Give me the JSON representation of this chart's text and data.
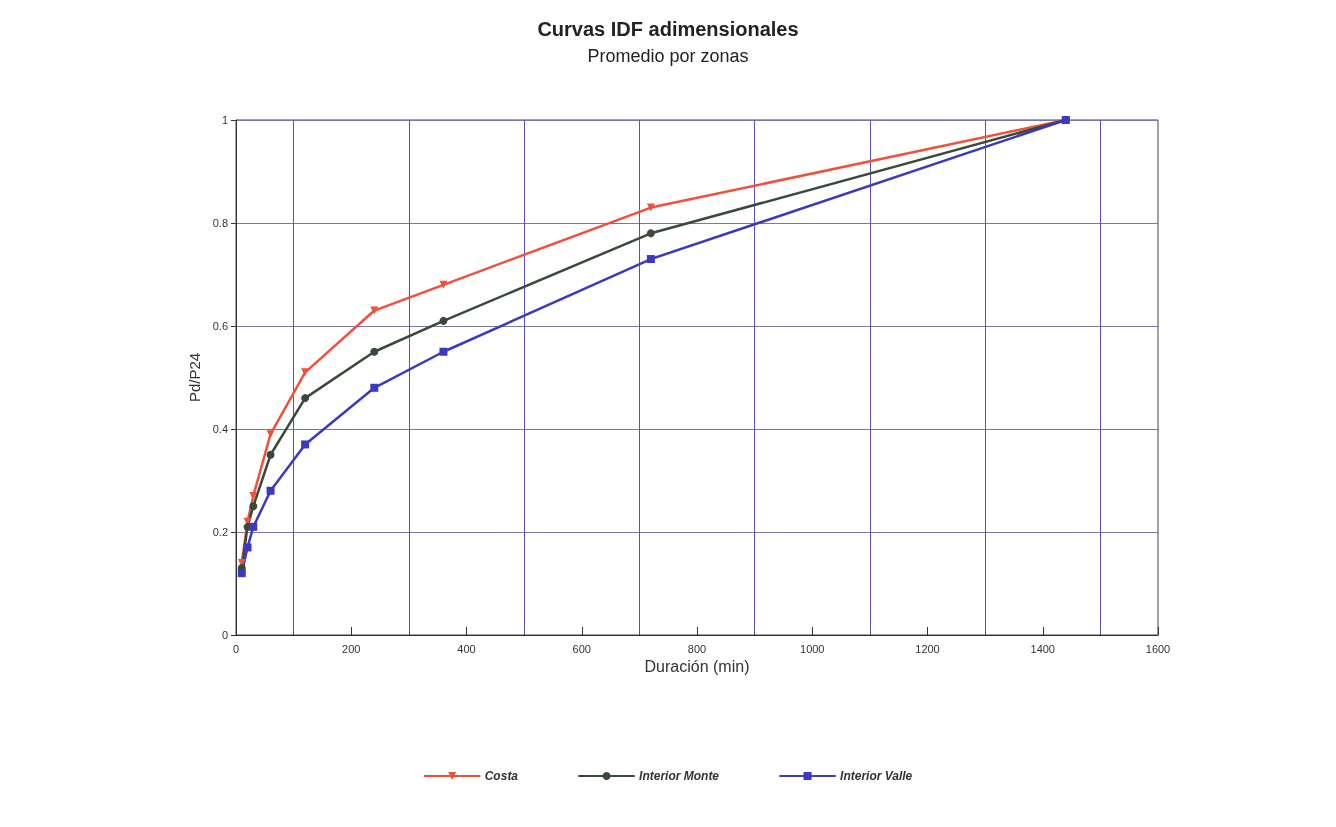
{
  "chart_data": {
    "type": "line",
    "title": "Curvas IDF adimensionales",
    "subtitle": "Promedio por zonas",
    "xlabel": "Duración (min)",
    "ylabel": "Pd/P24",
    "x": [
      10,
      20,
      30,
      60,
      120,
      240,
      360,
      720,
      1440
    ],
    "series": [
      {
        "name": "Costa",
        "color": "#f0503c",
        "marker": "triangle",
        "values": [
          0.14,
          0.22,
          0.27,
          0.39,
          0.51,
          0.63,
          0.68,
          0.83,
          1
        ]
      },
      {
        "name": "Interior Monte",
        "color": "#3a4a3a",
        "marker": "circle",
        "values": [
          0.13,
          0.21,
          0.25,
          0.35,
          0.46,
          0.55,
          0.61,
          0.78,
          1
        ]
      },
      {
        "name": "Interior Valle",
        "color": "#3a3ac0",
        "marker": "square",
        "values": [
          0.12,
          0.17,
          0.21,
          0.28,
          0.37,
          0.48,
          0.55,
          0.73,
          1
        ]
      }
    ],
    "xlim": [
      0,
      1600
    ],
    "xticks": [
      0,
      {
        "value": 100,
        "label": null
      },
      200,
      {
        "value": 300,
        "label": null
      },
      400,
      {
        "value": 500,
        "label": null
      },
      600,
      {
        "value": 700,
        "label": null
      },
      800,
      {
        "value": 900,
        "label": null
      },
      1000,
      {
        "value": 1100,
        "label": null
      },
      1200,
      {
        "value": 1300,
        "label": null
      },
      1400,
      {
        "value": 1500,
        "label": null
      },
      1600
    ],
    "ylim": [
      0,
      1
    ],
    "yticks": [
      0,
      0.2,
      0.4,
      0.6,
      0.8,
      1
    ],
    "grid": true,
    "legend": "bottom",
    "line_style": "solid"
  }
}
